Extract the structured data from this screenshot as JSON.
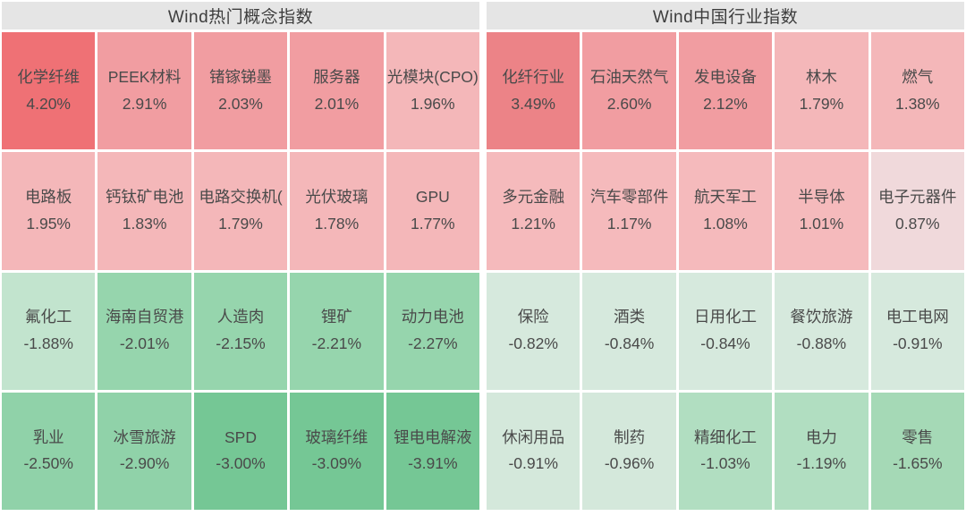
{
  "chart_data": [
    {
      "type": "heatmap",
      "title": "Wind热门概念指数",
      "columns": 5,
      "rows": 4,
      "value_unit": "%",
      "legend_position": "none",
      "items": [
        {
          "name": "化学纤维",
          "pct": 4.2,
          "color": "#ef7175"
        },
        {
          "name": "PEEK材料",
          "pct": 2.91,
          "color": "#f19da1"
        },
        {
          "name": "锗镓锑墨",
          "pct": 2.03,
          "color": "#f19da1"
        },
        {
          "name": "服务器",
          "pct": 2.01,
          "color": "#f19da1"
        },
        {
          "name": "光模块(CPO)",
          "pct": 1.96,
          "color": "#f4b7b9"
        },
        {
          "name": "电路板",
          "pct": 1.95,
          "color": "#f4b7b9"
        },
        {
          "name": "钙钛矿电池",
          "pct": 1.83,
          "color": "#f4b7b9"
        },
        {
          "name": "电路交换机(",
          "pct": 1.79,
          "color": "#f4b7b9"
        },
        {
          "name": "光伏玻璃",
          "pct": 1.78,
          "color": "#f4b7b9"
        },
        {
          "name": "GPU",
          "pct": 1.77,
          "color": "#f4b7b9"
        },
        {
          "name": "氟化工",
          "pct": -1.88,
          "color": "#c2e4ce"
        },
        {
          "name": "海南自贸港",
          "pct": -2.01,
          "color": "#96d5ad"
        },
        {
          "name": "人造肉",
          "pct": -2.15,
          "color": "#96d5ad"
        },
        {
          "name": "锂矿",
          "pct": -2.21,
          "color": "#96d5ad"
        },
        {
          "name": "动力电池",
          "pct": -2.27,
          "color": "#96d5ad"
        },
        {
          "name": "乳业",
          "pct": -2.5,
          "color": "#90d2a9"
        },
        {
          "name": "冰雪旅游",
          "pct": -2.9,
          "color": "#90d2a9"
        },
        {
          "name": "SPD",
          "pct": -3.0,
          "color": "#75c795"
        },
        {
          "name": "玻璃纤维",
          "pct": -3.09,
          "color": "#75c795"
        },
        {
          "name": "锂电电解液",
          "pct": -3.91,
          "color": "#75c795"
        }
      ]
    },
    {
      "type": "heatmap",
      "title": "Wind中国行业指数",
      "columns": 5,
      "rows": 4,
      "value_unit": "%",
      "legend_position": "none",
      "items": [
        {
          "name": "化纤行业",
          "pct": 3.49,
          "color": "#ec8387"
        },
        {
          "name": "石油天然气",
          "pct": 2.6,
          "color": "#f19da1"
        },
        {
          "name": "发电设备",
          "pct": 2.12,
          "color": "#f19da1"
        },
        {
          "name": "林木",
          "pct": 1.79,
          "color": "#f4b7b9"
        },
        {
          "name": "燃气",
          "pct": 1.38,
          "color": "#f4b7b9"
        },
        {
          "name": "多元金融",
          "pct": 1.21,
          "color": "#f5babc"
        },
        {
          "name": "汽车零部件",
          "pct": 1.17,
          "color": "#f5babc"
        },
        {
          "name": "航天军工",
          "pct": 1.08,
          "color": "#f5babc"
        },
        {
          "name": "半导体",
          "pct": 1.01,
          "color": "#f5babc"
        },
        {
          "name": "电子元器件",
          "pct": 0.87,
          "color": "#f0d9db"
        },
        {
          "name": "保险",
          "pct": -0.82,
          "color": "#d6e9dd"
        },
        {
          "name": "酒类",
          "pct": -0.84,
          "color": "#d6e9dd"
        },
        {
          "name": "日用化工",
          "pct": -0.84,
          "color": "#d6e9dd"
        },
        {
          "name": "餐饮旅游",
          "pct": -0.88,
          "color": "#d6e9dd"
        },
        {
          "name": "电工电网",
          "pct": -0.91,
          "color": "#d6e9dd"
        },
        {
          "name": "休闲用品",
          "pct": -0.91,
          "color": "#d4e8db"
        },
        {
          "name": "制药",
          "pct": -0.96,
          "color": "#d4e8db"
        },
        {
          "name": "精细化工",
          "pct": -1.03,
          "color": "#b1dec1"
        },
        {
          "name": "电力",
          "pct": -1.19,
          "color": "#b1dec1"
        },
        {
          "name": "零售",
          "pct": -1.65,
          "color": "#a5d9b6"
        }
      ]
    }
  ],
  "colors": {
    "header_bg": "#e5e5e5",
    "header_text": "#3d3d3d",
    "tile_text": "#4a4a4a",
    "gap": "#ffffff"
  }
}
